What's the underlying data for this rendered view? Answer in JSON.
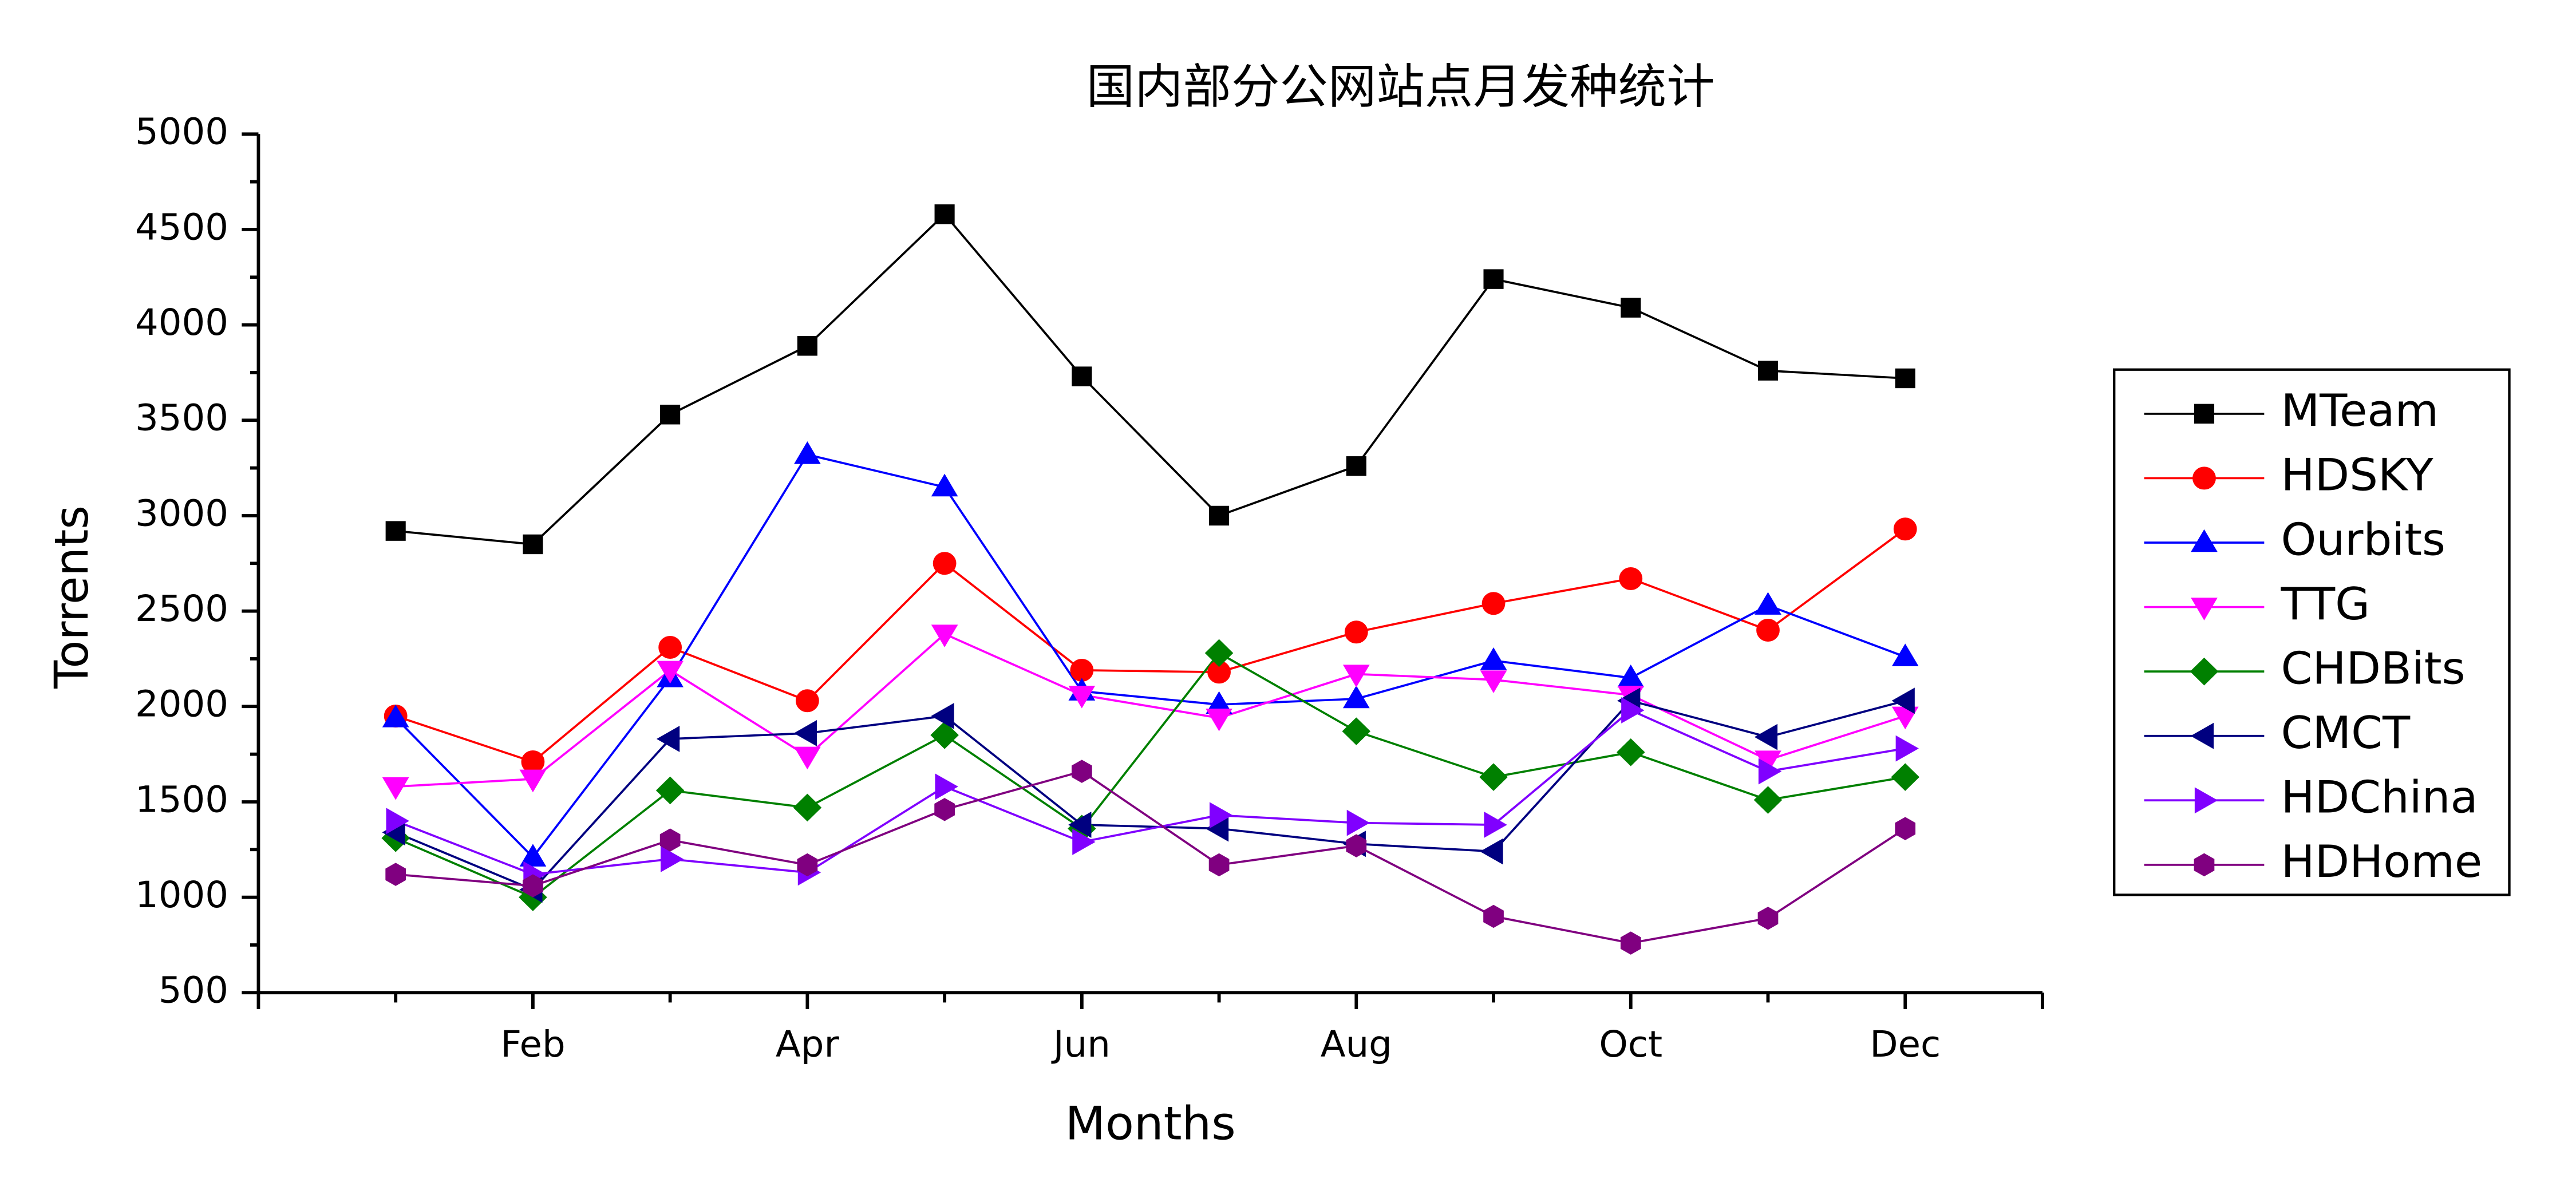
{
  "chart_data": {
    "type": "line",
    "title": "国内部分公网站点月发种统计",
    "x_label": "Months",
    "y_label": "Torrents",
    "categories": [
      null,
      "Feb",
      null,
      "Apr",
      null,
      "Jun",
      null,
      "Aug",
      null,
      "Oct",
      null,
      "Dec"
    ],
    "ylim": [
      500,
      5000
    ],
    "yticks": [
      500,
      1000,
      1500,
      2000,
      2500,
      3000,
      3500,
      4000,
      4500,
      5000
    ],
    "legend": "right",
    "series": [
      {
        "name": "MTeam",
        "color": "#000000",
        "marker": "square",
        "values": [
          2920,
          2850,
          3530,
          3890,
          4580,
          3730,
          3000,
          3260,
          4240,
          4090,
          3760,
          3720
        ]
      },
      {
        "name": "HDSKY",
        "color": "#ff0000",
        "marker": "circle",
        "values": [
          1950,
          1710,
          2310,
          2030,
          2750,
          2190,
          2180,
          2390,
          2540,
          2670,
          2400,
          2930
        ]
      },
      {
        "name": "Ourbits",
        "color": "#0000ff",
        "marker": "triangle-up",
        "values": [
          1940,
          1210,
          2150,
          3320,
          3150,
          2080,
          2010,
          2040,
          2240,
          2150,
          2530,
          2260
        ]
      },
      {
        "name": "TTG",
        "color": "#ff00ff",
        "marker": "triangle-down",
        "values": [
          1580,
          1620,
          2190,
          1740,
          2380,
          2060,
          1940,
          2170,
          2140,
          2060,
          1720,
          1950
        ]
      },
      {
        "name": "CHDBits",
        "color": "#008000",
        "marker": "diamond",
        "values": [
          1310,
          1000,
          1560,
          1470,
          1850,
          1360,
          2280,
          1870,
          1630,
          1760,
          1510,
          1630
        ]
      },
      {
        "name": "CMCT",
        "color": "#000080",
        "marker": "triangle-left",
        "values": [
          1340,
          1040,
          1830,
          1860,
          1950,
          1380,
          1360,
          1280,
          1240,
          2030,
          1840,
          2030
        ]
      },
      {
        "name": "HDChina",
        "color": "#8000ff",
        "marker": "triangle-right",
        "values": [
          1400,
          1120,
          1200,
          1130,
          1580,
          1290,
          1430,
          1390,
          1380,
          1980,
          1660,
          1780
        ]
      },
      {
        "name": "HDHome",
        "color": "#800080",
        "marker": "hexagon",
        "values": [
          1120,
          1060,
          1300,
          1170,
          1460,
          1660,
          1170,
          1270,
          900,
          760,
          890,
          1360
        ]
      }
    ]
  }
}
